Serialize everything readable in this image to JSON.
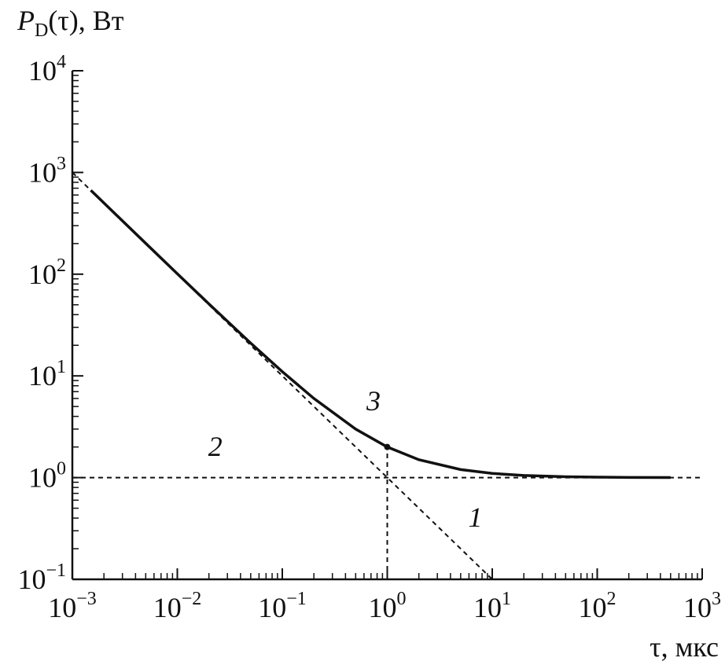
{
  "chart_data": {
    "type": "line",
    "ylabel": {
      "main": "P",
      "sub": "D",
      "rest": "(τ), Вт"
    },
    "xlabel": "τ, мкс",
    "xscale": "log",
    "yscale": "log",
    "xlim": [
      0.001,
      1000
    ],
    "ylim": [
      0.1,
      10000
    ],
    "xticks": [
      {
        "value": 0.001,
        "label": "10",
        "exponent": "−3"
      },
      {
        "value": 0.01,
        "label": "10",
        "exponent": "−2"
      },
      {
        "value": 0.1,
        "label": "10",
        "exponent": "−1"
      },
      {
        "value": 1,
        "label": "10",
        "exponent": "0"
      },
      {
        "value": 10,
        "label": "10",
        "exponent": "1"
      },
      {
        "value": 100,
        "label": "10",
        "exponent": "2"
      },
      {
        "value": 1000,
        "label": "10",
        "exponent": "3"
      }
    ],
    "yticks": [
      {
        "value": 0.1,
        "label": "10",
        "exponent": "−1"
      },
      {
        "value": 1,
        "label": "10",
        "exponent": "0"
      },
      {
        "value": 10,
        "label": "10",
        "exponent": "1"
      },
      {
        "value": 100,
        "label": "10",
        "exponent": "2"
      },
      {
        "value": 1000,
        "label": "10",
        "exponent": "3"
      },
      {
        "value": 10000,
        "label": "10",
        "exponent": "4"
      }
    ],
    "minor_ticks": true,
    "series": [
      {
        "color": "#111111",
        "style": "solid",
        "x": [
          0.0015,
          0.002,
          0.005,
          0.01,
          0.02,
          0.05,
          0.1,
          0.2,
          0.5,
          1,
          2,
          5,
          10,
          20,
          50,
          100,
          200,
          500
        ],
        "values": [
          668,
          501,
          201,
          101,
          51,
          21,
          11,
          6,
          3,
          2,
          1.5,
          1.2,
          1.1,
          1.05,
          1.02,
          1.01,
          1.005,
          1.002
        ]
      },
      {
        "color": "#111111",
        "style": "dashed",
        "x": [
          0.001,
          10
        ],
        "values": [
          1000,
          0.1
        ]
      },
      {
        "color": "#111111",
        "style": "dashed",
        "x": [
          0.001,
          1000
        ],
        "values": [
          1,
          1
        ]
      },
      {
        "color": "#111111",
        "style": "dashed",
        "x": [
          1,
          1
        ],
        "values": [
          0.1,
          2
        ]
      }
    ],
    "point": {
      "x": 1,
      "y": 2
    },
    "annotations": [
      {
        "text": "1",
        "x": 6.9,
        "y": 0.33
      },
      {
        "text": "2",
        "x": 0.023,
        "y": 1.63
      },
      {
        "text": "3",
        "x": 0.74,
        "y": 4.6
      }
    ]
  }
}
